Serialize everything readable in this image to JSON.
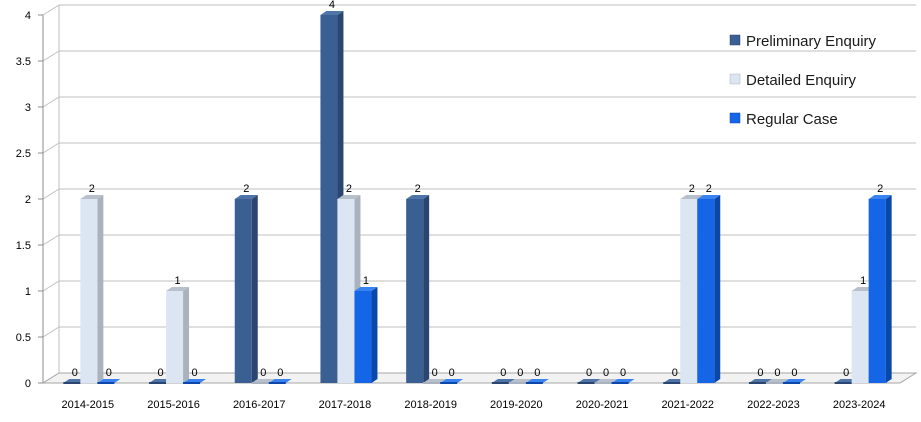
{
  "chart_data": {
    "type": "bar",
    "categories": [
      "2014-2015",
      "2015-2016",
      "2016-2017",
      "2017-2018",
      "2018-2019",
      "2019-2020",
      "2020-2021",
      "2021-2022",
      "2022-2023",
      "2023-2024"
    ],
    "series": [
      {
        "name": "Preliminary Enquiry",
        "values": [
          0,
          0,
          2,
          4,
          2,
          0,
          0,
          0,
          0,
          0
        ],
        "color": "#3a5f93",
        "side": "#2a4670",
        "top": "#4f74a8"
      },
      {
        "name": "Detailed Enquiry",
        "values": [
          2,
          1,
          0,
          2,
          0,
          0,
          0,
          2,
          0,
          1
        ],
        "color": "#dce6f2",
        "side": "#a9b2bd",
        "top": "#b7c0cb"
      },
      {
        "name": "Regular Case",
        "values": [
          0,
          0,
          0,
          1,
          0,
          0,
          0,
          2,
          0,
          2
        ],
        "color": "#1466e6",
        "side": "#0b47a8",
        "top": "#3a82f0"
      }
    ],
    "yticks": [
      "0",
      "0.5",
      "1",
      "1.5",
      "2",
      "2.5",
      "3",
      "3.5",
      "4"
    ],
    "ylim": [
      0,
      4
    ],
    "grid": true,
    "legend_position": "top-right"
  }
}
